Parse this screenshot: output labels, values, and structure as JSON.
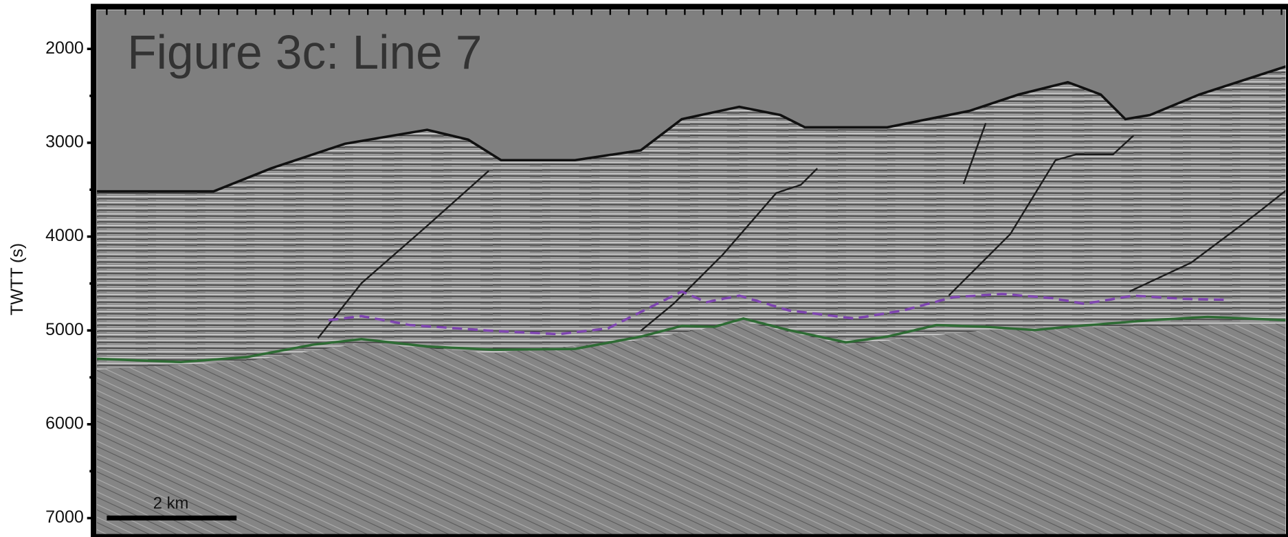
{
  "chart_data": {
    "type": "seismic-section",
    "title": "Figure 3c: Line 7",
    "y_label": "TWTT (s)",
    "ylim": [
      1550,
      7200
    ],
    "yticks": [
      2000,
      3000,
      4000,
      5000,
      6000,
      7000
    ],
    "scale_bar_label": "2 km"
  }
}
